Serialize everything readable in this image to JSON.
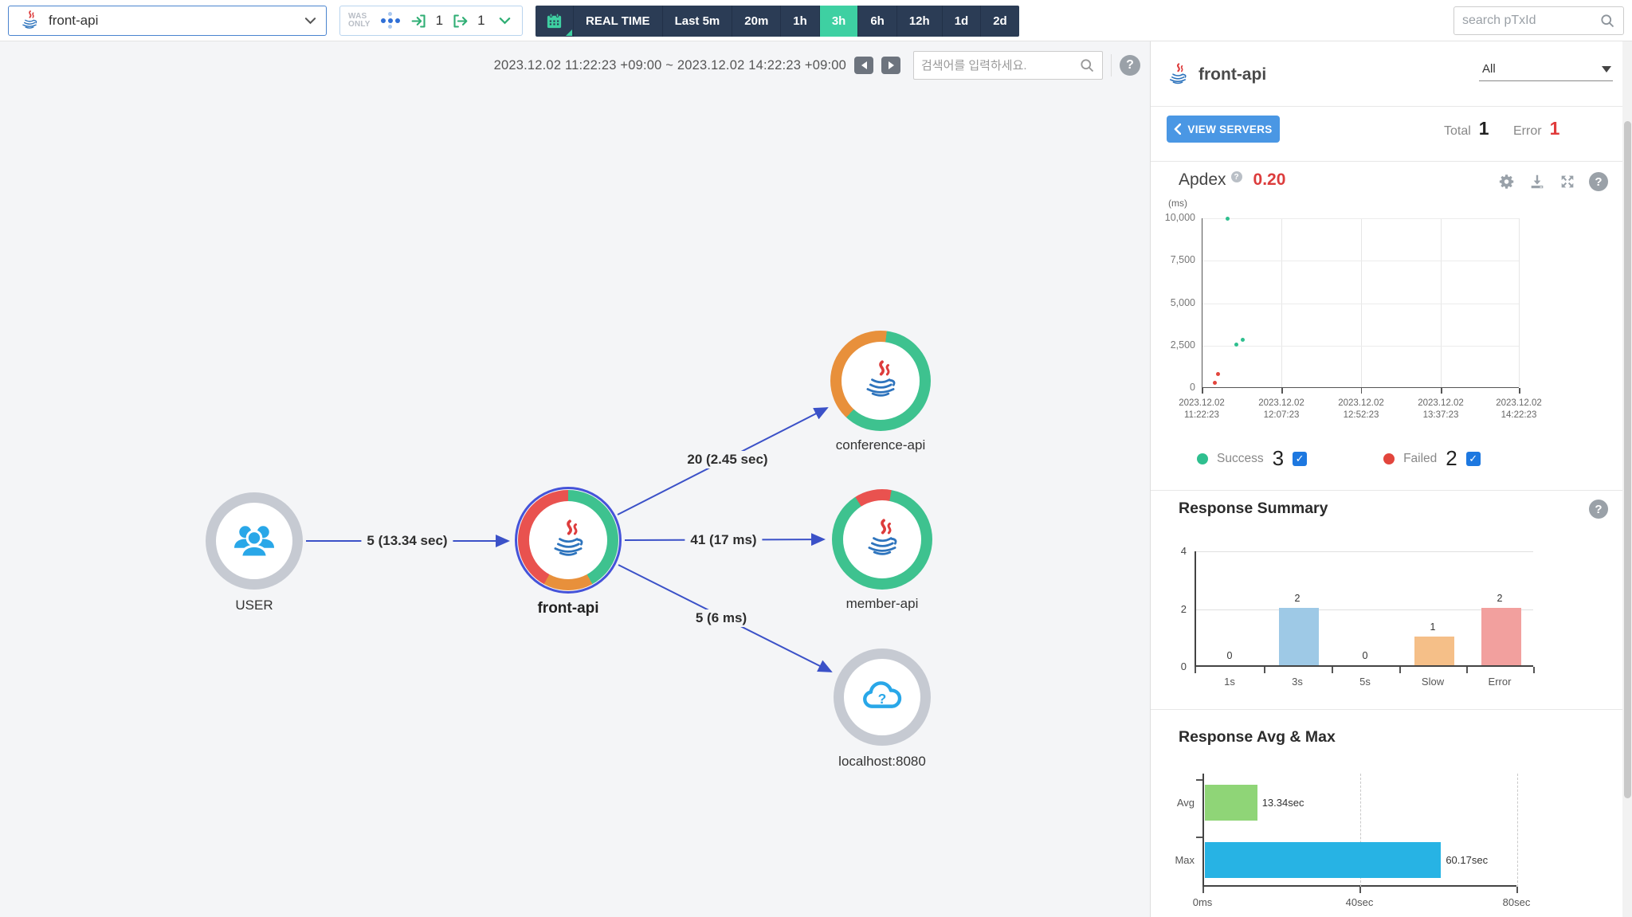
{
  "header": {
    "app_selector": {
      "label": "front-api"
    },
    "was_only": {
      "label_line1": "WAS",
      "label_line2": "ONLY",
      "inbound_count": "1",
      "outbound_count": "1"
    },
    "time_ranges": [
      "REAL TIME",
      "Last 5m",
      "20m",
      "1h",
      "3h",
      "6h",
      "12h",
      "1d",
      "2d"
    ],
    "active_range": "3h",
    "search_placeholder": "search pTxId"
  },
  "map": {
    "period": "2023.12.02 11:22:23 +09:00 ~ 2023.12.02 14:22:23 +09:00",
    "search_placeholder": "검색어를 입력하세요.",
    "nodes": [
      {
        "id": "user",
        "label": "USER",
        "type": "user"
      },
      {
        "id": "front-api",
        "label": "front-api",
        "type": "java",
        "focused": true
      },
      {
        "id": "conference-api",
        "label": "conference-api",
        "type": "java"
      },
      {
        "id": "member-api",
        "label": "member-api",
        "type": "java"
      },
      {
        "id": "localhost",
        "label": "localhost:8080",
        "type": "unknown-cloud"
      }
    ],
    "edges": [
      {
        "from": "user",
        "to": "front-api",
        "label": "5 (13.34 sec)"
      },
      {
        "from": "front-api",
        "to": "conference-api",
        "label": "20 (2.45 sec)"
      },
      {
        "from": "front-api",
        "to": "member-api",
        "label": "41 (17 ms)"
      },
      {
        "from": "front-api",
        "to": "localhost",
        "label": "5 (6 ms)"
      }
    ]
  },
  "sidebar": {
    "title": "front-api",
    "filter_value": "All",
    "view_servers_label": "VIEW SERVERS",
    "total_label": "Total",
    "total_value": "1",
    "error_label": "Error",
    "error_value": "1",
    "apdex_label": "Apdex",
    "apdex_value": "0.20",
    "response_summary_title": "Response Summary",
    "response_avg_max_title": "Response Avg & Max"
  },
  "colors": {
    "accent_teal": "#3ed0a2",
    "navy": "#2b3c55",
    "primary_blue": "#4a97e4",
    "edge_blue": "#3b51c8",
    "success_green": "#2fbf8f",
    "failed_red": "#e2453c",
    "apdex_red": "#dc3c3c",
    "node_green": "#3ec28f",
    "node_red": "#e9524f",
    "node_orange": "#e8903b"
  },
  "chart_data": [
    {
      "type": "scatter",
      "title": "Apdex scatter (response time)",
      "ylabel": "(ms)",
      "ylim": [
        0,
        10000
      ],
      "yticks": [
        "10,000",
        "7,500",
        "5,000",
        "2,500",
        "0"
      ],
      "xticklabels": [
        "2023.12.02 11:22:23",
        "2023.12.02 12:07:23",
        "2023.12.02 12:52:23",
        "2023.12.02 13:37:23",
        "2023.12.02 14:22:23"
      ],
      "grid": true,
      "series": [
        {
          "name": "Success",
          "count": "3",
          "checked": true,
          "color": "#2fbf8f",
          "points": [
            {
              "x": 0.08,
              "y": 10000
            },
            {
              "x": 0.126,
              "y": 2850
            },
            {
              "x": 0.108,
              "y": 2560
            }
          ]
        },
        {
          "name": "Failed",
          "count": "2",
          "checked": true,
          "color": "#e2453c",
          "points": [
            {
              "x": 0.048,
              "y": 800
            },
            {
              "x": 0.04,
              "y": 300
            }
          ]
        }
      ]
    },
    {
      "type": "bar",
      "title": "Response Summary",
      "categories": [
        "1s",
        "3s",
        "5s",
        "Slow",
        "Error"
      ],
      "values": [
        0,
        2,
        0,
        1,
        2
      ],
      "colors": [
        "#9ec9e6",
        "#9ec9e6",
        "#9ec9e6",
        "#f5bf88",
        "#f2a09e"
      ],
      "ylim": [
        0,
        4
      ],
      "yticks": [
        0,
        2,
        4
      ],
      "legend_position": "none"
    },
    {
      "type": "bar-horizontal",
      "title": "Response Avg & Max",
      "categories": [
        "Avg",
        "Max"
      ],
      "values": [
        13.34,
        60.17
      ],
      "value_labels": [
        "13.34sec",
        "60.17sec"
      ],
      "colors": [
        "#8fd577",
        "#27b3e4"
      ],
      "xlim": [
        0,
        80
      ],
      "xticks": [
        "0ms",
        "40sec",
        "80sec"
      ]
    }
  ]
}
